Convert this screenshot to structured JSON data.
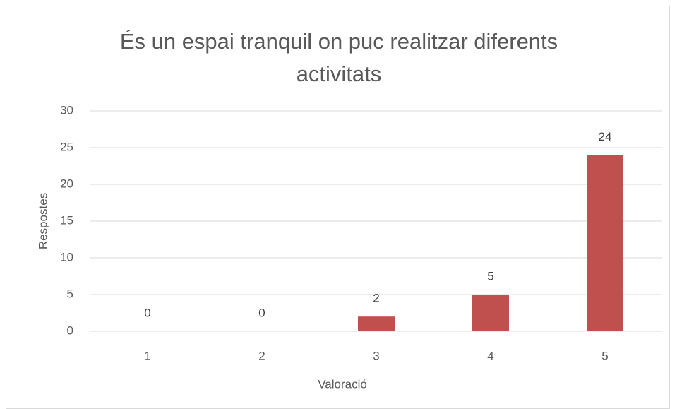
{
  "chart_data": {
    "type": "bar",
    "title": "És un espai tranquil on puc realitzar diferents activitats",
    "x_label": "Valoració",
    "y_label": "Respostes",
    "categories": [
      "1",
      "2",
      "3",
      "4",
      "5"
    ],
    "values": [
      0,
      0,
      2,
      5,
      24
    ],
    "color": "#c0504d",
    "ylim": [
      0,
      30
    ],
    "yticks": [
      0,
      5,
      10,
      15,
      20,
      25,
      30
    ],
    "grid": true
  }
}
